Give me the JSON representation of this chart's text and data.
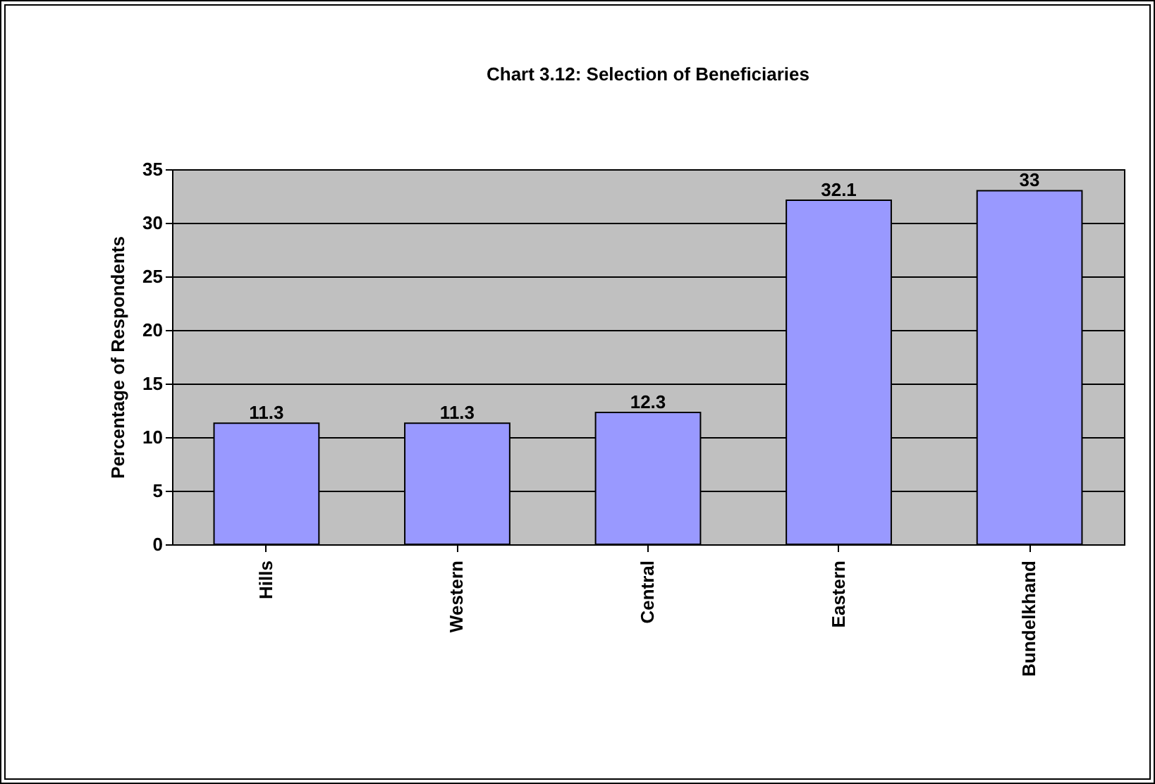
{
  "chart_data": {
    "type": "bar",
    "title": "Chart 3.12: Selection of Beneficiaries",
    "ylabel": "Percentage of Respondents",
    "categories": [
      "Hills",
      "Western",
      "Central",
      "Eastern",
      "Bundelkhand"
    ],
    "values": [
      11.3,
      11.3,
      12.3,
      32.1,
      33
    ],
    "color": "#9999ff",
    "ylim": [
      0,
      35
    ],
    "yticks": [
      0,
      5,
      10,
      15,
      20,
      25,
      30,
      35
    ],
    "grid": "y",
    "data_labels": true
  }
}
